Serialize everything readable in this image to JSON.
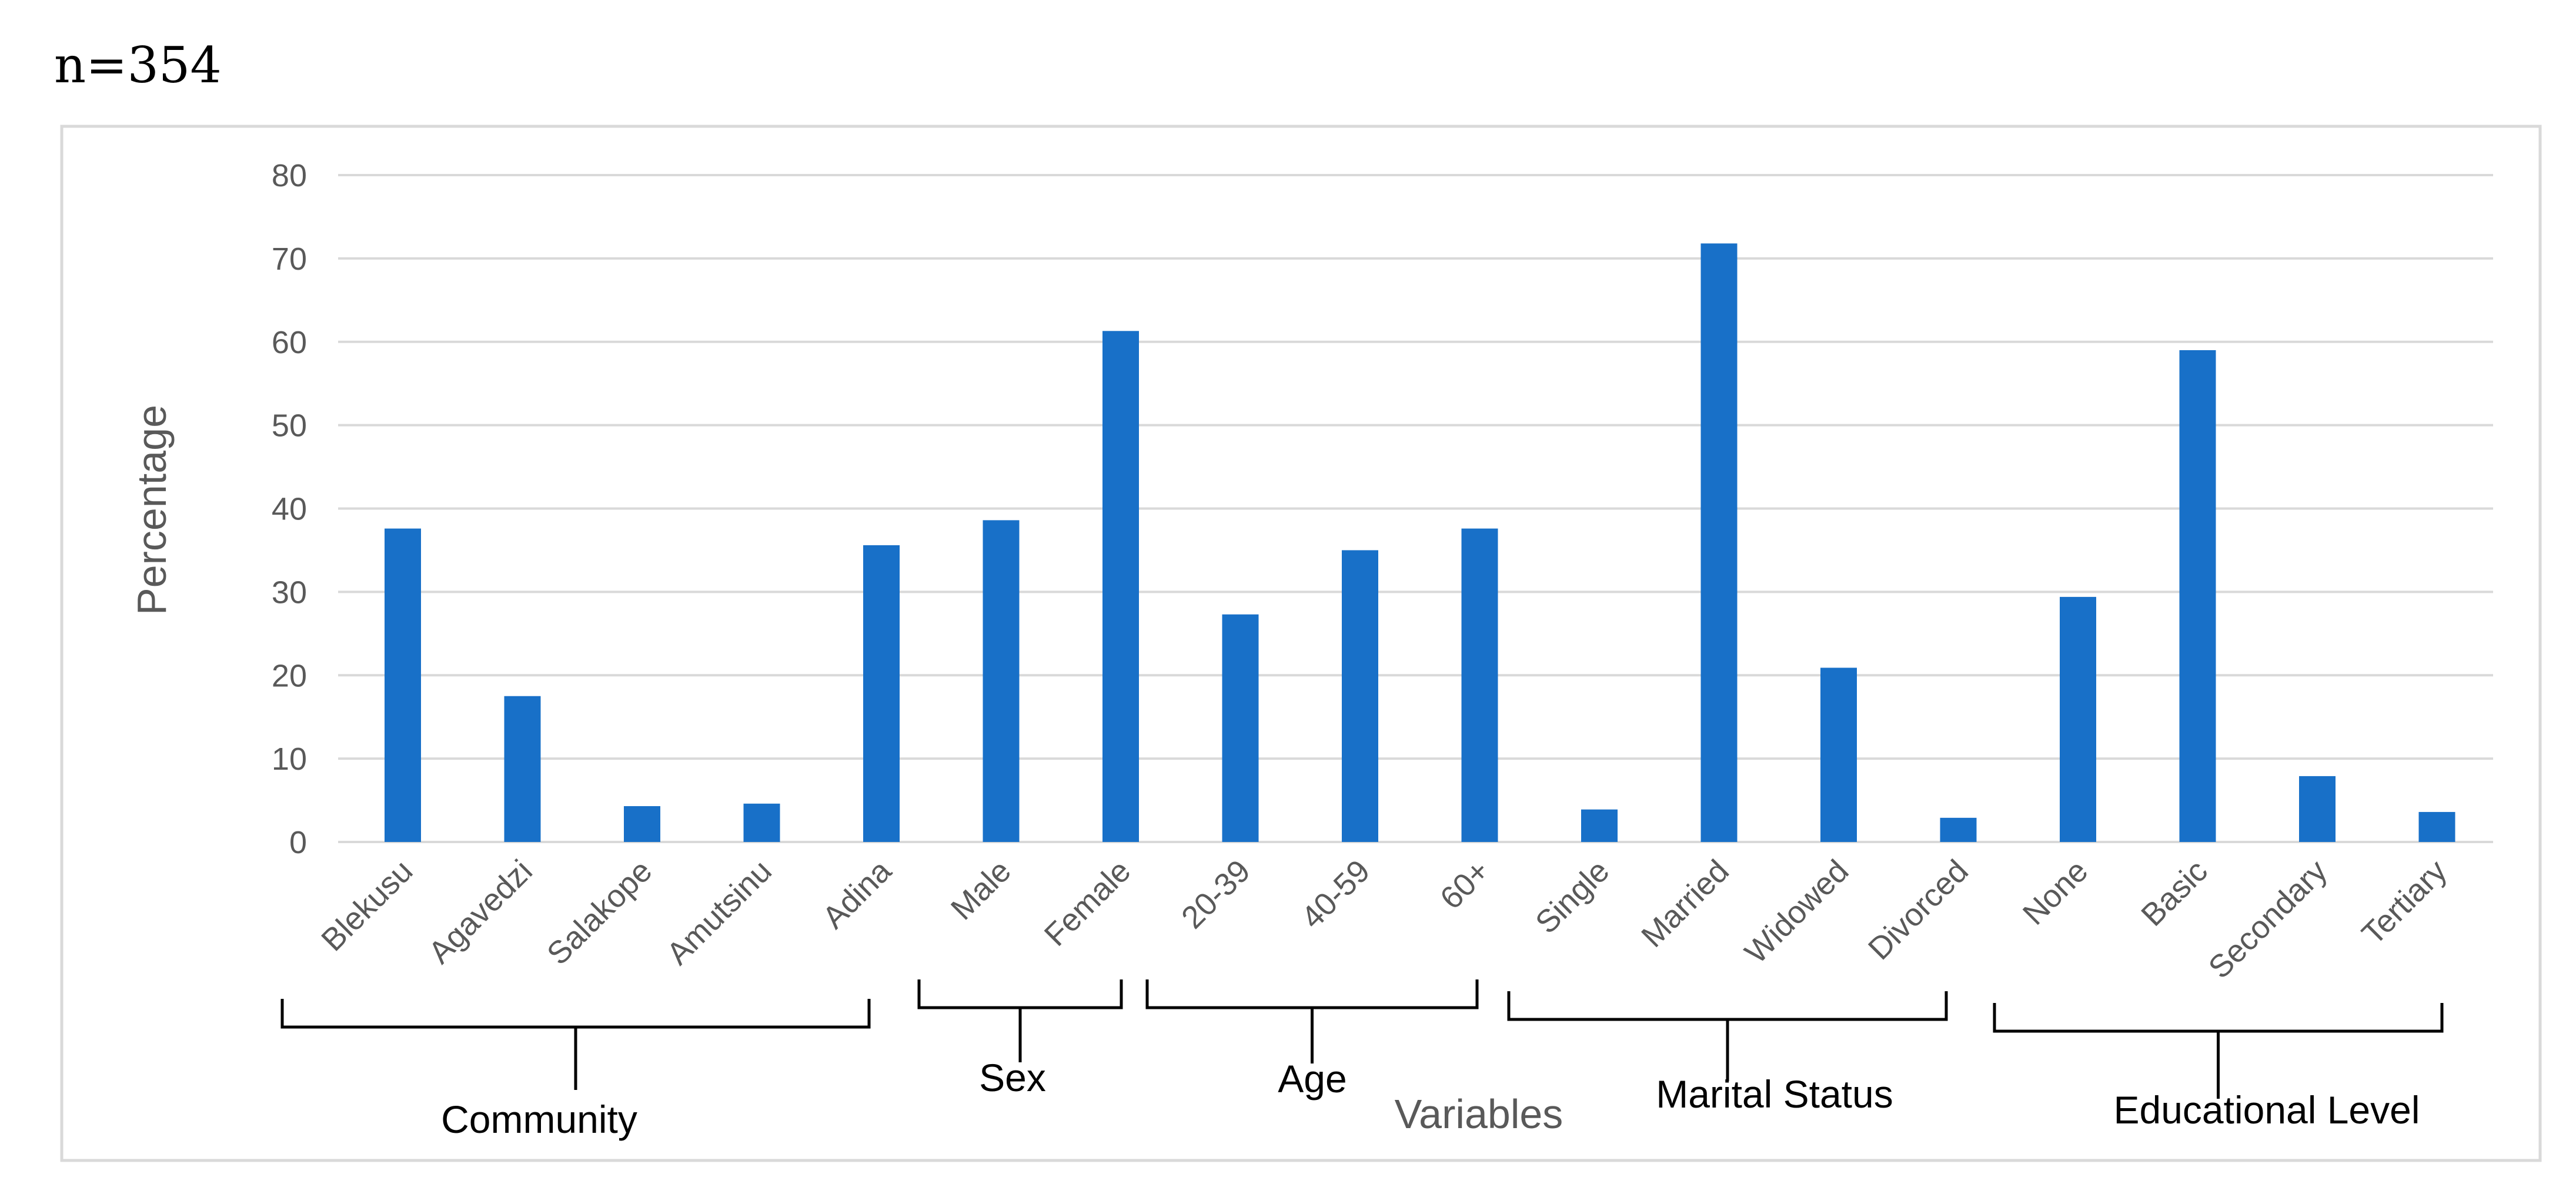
{
  "chart_data": {
    "type": "bar",
    "sample_note": "n=354",
    "ylabel": "Percentage",
    "xlabel": "Variables",
    "ylim": [
      0,
      80
    ],
    "yticks": [
      0,
      10,
      20,
      30,
      40,
      50,
      60,
      70,
      80
    ],
    "grid": true,
    "colors": {
      "bar": "#1870C8",
      "grid": "#D9D9D9",
      "frame": "#D9D9D9",
      "bracket": "#000000"
    },
    "categories": [
      "Blekusu",
      "Agavedzi",
      "Salakope",
      "Amutsinu",
      "Adina",
      "Male",
      "Female",
      "20-39",
      "40-59",
      "60+",
      "Single",
      "Married",
      "Widowed",
      "Divorced",
      "None",
      "Basic",
      "Secondary",
      "Tertiary"
    ],
    "values": [
      37.6,
      17.5,
      4.3,
      4.6,
      35.6,
      38.6,
      61.3,
      27.3,
      35.0,
      37.6,
      3.9,
      71.8,
      20.9,
      2.9,
      29.4,
      59.0,
      7.9,
      3.6
    ],
    "groups": [
      {
        "label": "Community",
        "start": 0,
        "end": 4
      },
      {
        "label": "Sex",
        "start": 5,
        "end": 6
      },
      {
        "label": "Age",
        "start": 7,
        "end": 9
      },
      {
        "label": "Marital Status",
        "start": 10,
        "end": 13
      },
      {
        "label": "Educational Level",
        "start": 14,
        "end": 17
      }
    ]
  }
}
